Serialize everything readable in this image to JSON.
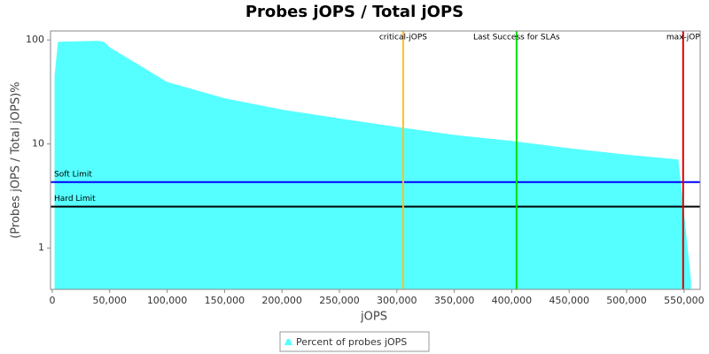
{
  "chart_data": {
    "type": "area",
    "title": "Probes jOPS / Total jOPS",
    "x_label": "jOPS",
    "y_label": "(Probes jOPS / Total jOPS)%",
    "y_scale": "log",
    "xlim": [
      -1500,
      564000
    ],
    "ylim": [
      0.4,
      122
    ],
    "xticks": [
      0,
      {
        "value": 50000,
        "label": "50,000"
      },
      {
        "value": 100000,
        "label": "100,000"
      },
      {
        "value": 150000,
        "label": "150,000"
      },
      {
        "value": 200000,
        "label": "200,000"
      },
      {
        "value": 250000,
        "label": "250,000"
      },
      {
        "value": 300000,
        "label": "300,000"
      },
      {
        "value": 350000,
        "label": "350,000"
      },
      {
        "value": 400000,
        "label": "400,000"
      },
      {
        "value": 450000,
        "label": "450,000"
      },
      {
        "value": 500000,
        "label": "500,000"
      },
      {
        "value": 550000,
        "label": "550,000"
      }
    ],
    "yticks": [
      1,
      10,
      100
    ],
    "x": [
      2000,
      5000,
      40000,
      45000,
      50000,
      100000,
      150000,
      200000,
      250000,
      300000,
      350000,
      400000,
      450000,
      500000,
      545000,
      556000
    ],
    "series": [
      {
        "name": "Percent of probes jOPS",
        "color": "#55ffff",
        "values": [
          45,
          96,
          98,
          96,
          85,
          39.5,
          27.5,
          21.4,
          17.6,
          14.6,
          12.2,
          10.7,
          9.1,
          7.9,
          7.1,
          0.5
        ]
      }
    ],
    "vertical_lines": [
      {
        "label": "critical-jOPS",
        "value": 305500,
        "color": "#ffc020"
      },
      {
        "label": "Last Success for SLAs",
        "value": 404200,
        "color": "#00e000"
      },
      {
        "label": "max-jOP",
        "value": 549200,
        "color": "#e00000"
      }
    ],
    "horizontal_lines": [
      {
        "label": "Soft Limit",
        "value": 4.3,
        "color": "#0000ff"
      },
      {
        "label": "Hard Limit",
        "value": 2.5,
        "color": "#000000"
      }
    ]
  }
}
